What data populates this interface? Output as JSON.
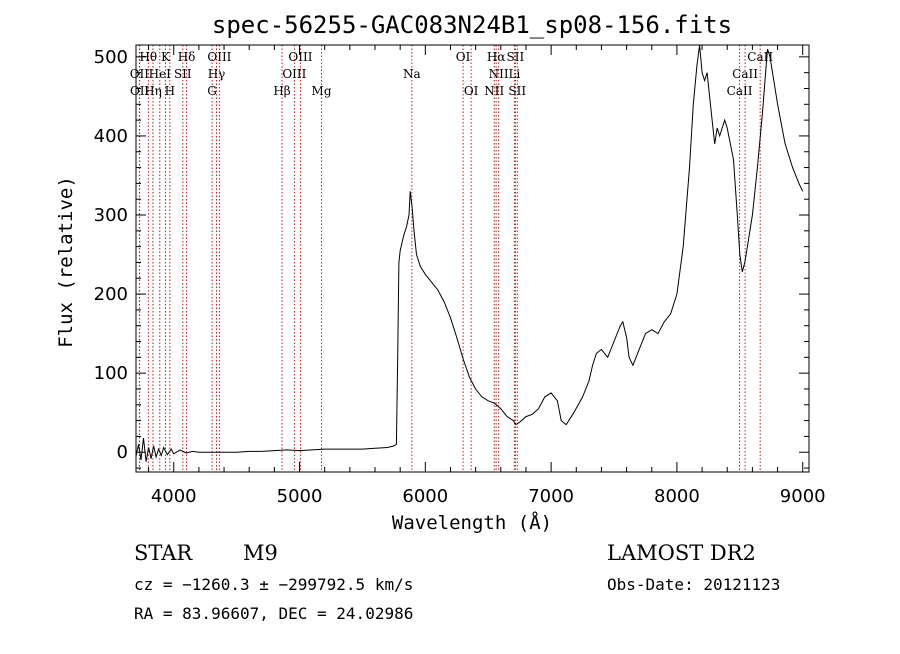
{
  "chart_data": {
    "type": "line",
    "title": "spec-56255-GAC083N24B1_sp08-156.fits",
    "xlabel": "Wavelength (Å)",
    "ylabel": "Flux (relative)",
    "xlim": [
      3700,
      9050
    ],
    "ylim": [
      -25,
      515
    ],
    "x_ticks": [
      4000,
      5000,
      6000,
      7000,
      8000,
      9000
    ],
    "x_tick_labels": [
      "4000",
      "5000",
      "6000",
      "7000",
      "8000",
      "9000"
    ],
    "y_ticks": [
      0,
      100,
      200,
      300,
      400,
      500
    ],
    "y_tick_labels": [
      "0",
      "100",
      "200",
      "300",
      "400",
      "500"
    ],
    "series": [
      {
        "color": "#000000",
        "points": [
          [
            3700,
            -5
          ],
          [
            3720,
            10
          ],
          [
            3740,
            -10
          ],
          [
            3760,
            18
          ],
          [
            3780,
            -12
          ],
          [
            3800,
            6
          ],
          [
            3820,
            -8
          ],
          [
            3840,
            8
          ],
          [
            3860,
            -6
          ],
          [
            3880,
            4
          ],
          [
            3900,
            -4
          ],
          [
            3920,
            6
          ],
          [
            3950,
            -3
          ],
          [
            3980,
            4
          ],
          [
            4000,
            -2
          ],
          [
            4050,
            3
          ],
          [
            4100,
            -1
          ],
          [
            4150,
            1
          ],
          [
            4200,
            0
          ],
          [
            4300,
            0
          ],
          [
            4400,
            0
          ],
          [
            4500,
            0
          ],
          [
            4600,
            1
          ],
          [
            4700,
            1
          ],
          [
            4800,
            2
          ],
          [
            4900,
            3
          ],
          [
            5000,
            2
          ],
          [
            5100,
            3
          ],
          [
            5200,
            4
          ],
          [
            5300,
            4
          ],
          [
            5400,
            4
          ],
          [
            5500,
            4
          ],
          [
            5600,
            5
          ],
          [
            5700,
            6
          ],
          [
            5750,
            8
          ],
          [
            5770,
            10
          ],
          [
            5780,
            120
          ],
          [
            5790,
            240
          ],
          [
            5800,
            255
          ],
          [
            5830,
            275
          ],
          [
            5850,
            285
          ],
          [
            5870,
            300
          ],
          [
            5880,
            330
          ],
          [
            5895,
            310
          ],
          [
            5910,
            280
          ],
          [
            5930,
            250
          ],
          [
            5960,
            235
          ],
          [
            6000,
            225
          ],
          [
            6050,
            215
          ],
          [
            6100,
            205
          ],
          [
            6150,
            190
          ],
          [
            6200,
            170
          ],
          [
            6250,
            145
          ],
          [
            6300,
            118
          ],
          [
            6350,
            95
          ],
          [
            6400,
            80
          ],
          [
            6450,
            70
          ],
          [
            6500,
            65
          ],
          [
            6550,
            62
          ],
          [
            6600,
            55
          ],
          [
            6650,
            45
          ],
          [
            6700,
            40
          ],
          [
            6720,
            35
          ],
          [
            6750,
            38
          ],
          [
            6800,
            45
          ],
          [
            6850,
            48
          ],
          [
            6900,
            55
          ],
          [
            6950,
            70
          ],
          [
            7000,
            75
          ],
          [
            7050,
            65
          ],
          [
            7080,
            40
          ],
          [
            7120,
            35
          ],
          [
            7180,
            50
          ],
          [
            7250,
            70
          ],
          [
            7300,
            90
          ],
          [
            7330,
            110
          ],
          [
            7360,
            125
          ],
          [
            7400,
            130
          ],
          [
            7450,
            120
          ],
          [
            7500,
            140
          ],
          [
            7550,
            160
          ],
          [
            7570,
            165
          ],
          [
            7600,
            145
          ],
          [
            7620,
            120
          ],
          [
            7650,
            110
          ],
          [
            7700,
            130
          ],
          [
            7750,
            150
          ],
          [
            7800,
            155
          ],
          [
            7850,
            150
          ],
          [
            7900,
            165
          ],
          [
            7950,
            175
          ],
          [
            8000,
            200
          ],
          [
            8050,
            260
          ],
          [
            8100,
            360
          ],
          [
            8130,
            440
          ],
          [
            8160,
            490
          ],
          [
            8180,
            515
          ],
          [
            8200,
            480
          ],
          [
            8220,
            470
          ],
          [
            8240,
            480
          ],
          [
            8260,
            450
          ],
          [
            8280,
            420
          ],
          [
            8300,
            390
          ],
          [
            8320,
            410
          ],
          [
            8340,
            400
          ],
          [
            8380,
            420
          ],
          [
            8400,
            410
          ],
          [
            8450,
            370
          ],
          [
            8480,
            300
          ],
          [
            8500,
            250
          ],
          [
            8520,
            228
          ],
          [
            8540,
            240
          ],
          [
            8560,
            260
          ],
          [
            8600,
            300
          ],
          [
            8640,
            360
          ],
          [
            8680,
            430
          ],
          [
            8700,
            470
          ],
          [
            8720,
            510
          ],
          [
            8740,
            500
          ],
          [
            8800,
            440
          ],
          [
            8860,
            390
          ],
          [
            8920,
            360
          ],
          [
            8970,
            340
          ],
          [
            9000,
            330
          ]
        ]
      }
    ],
    "line_marks": [
      {
        "label": "Hθ",
        "x": 3798,
        "row": 0
      },
      {
        "label": "K",
        "x": 3934,
        "row": 0
      },
      {
        "label": "Hδ",
        "x": 4102,
        "row": 0
      },
      {
        "label": "OIII",
        "x": 4363,
        "row": 0
      },
      {
        "label": "OIII",
        "x": 5007,
        "row": 0
      },
      {
        "label": "OI",
        "x": 6300,
        "row": 0
      },
      {
        "label": "Hα",
        "x": 6563,
        "row": 0
      },
      {
        "label": "SII",
        "x": 6716,
        "row": 0
      },
      {
        "label": "CaII",
        "x": 8662,
        "row": 0
      },
      {
        "label": "OII",
        "x": 3727,
        "row": 1
      },
      {
        "label": "HeI",
        "x": 3889,
        "row": 1
      },
      {
        "label": "SII",
        "x": 4072,
        "row": 1
      },
      {
        "label": "Hγ",
        "x": 4340,
        "row": 1
      },
      {
        "label": "OIII",
        "x": 4959,
        "row": 1
      },
      {
        "label": "Na",
        "x": 5893,
        "row": 1
      },
      {
        "label": "NII",
        "x": 6583,
        "row": 1
      },
      {
        "label": "Li",
        "x": 6708,
        "row": 1
      },
      {
        "label": "CaII",
        "x": 8542,
        "row": 1
      },
      {
        "label": "OII",
        "x": 3729,
        "row": 2
      },
      {
        "label": "Hη",
        "x": 3835,
        "row": 2
      },
      {
        "label": "H",
        "x": 3969,
        "row": 2
      },
      {
        "label": "G",
        "x": 4305,
        "row": 2
      },
      {
        "label": "Hβ",
        "x": 4861,
        "row": 2
      },
      {
        "label": "Mg",
        "x": 5175,
        "row": 2
      },
      {
        "label": "OI",
        "x": 6364,
        "row": 2
      },
      {
        "label": "NII",
        "x": 6548,
        "row": 2
      },
      {
        "label": "SII",
        "x": 6731,
        "row": 2
      },
      {
        "label": "CaII",
        "x": 8498,
        "row": 2
      }
    ],
    "line_mark_color": "#b22222"
  },
  "info": {
    "object_class": "STAR",
    "subclass": "M9",
    "survey": "LAMOST DR2",
    "redshift": "cz = −1260.3 ± −299792.5 km/s",
    "obs_date": "Obs-Date: 20121123",
    "coords": "RA =  83.96607, DEC =  24.02986"
  }
}
